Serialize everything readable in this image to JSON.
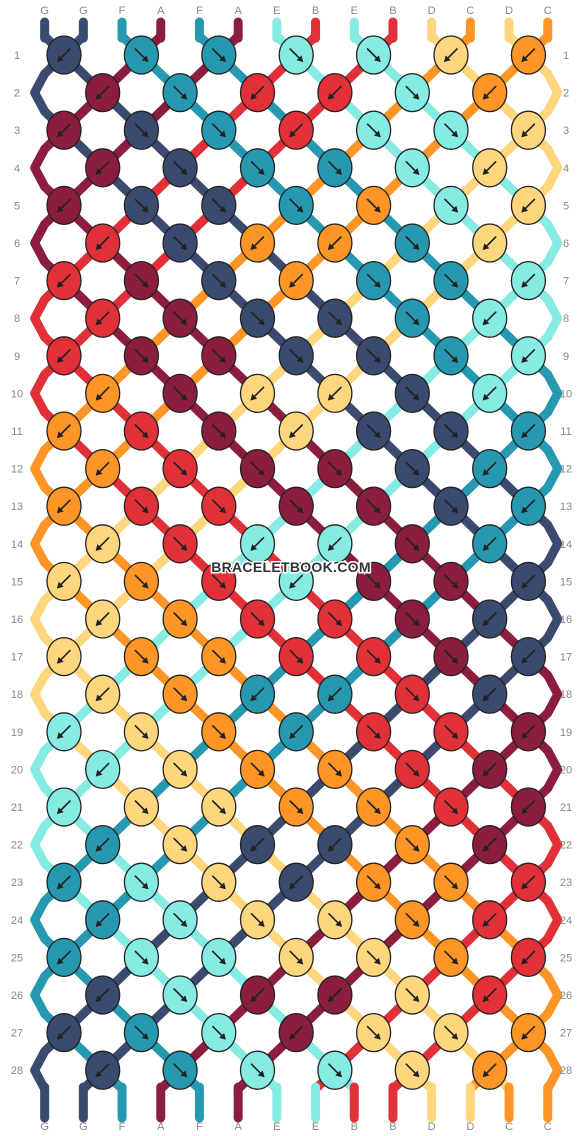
{
  "site": {
    "watermark": "BRACELETBOOK.COM"
  },
  "colors": {
    "G": "#3b4a6f",
    "F": "#2699b1",
    "A": "#8b1e3f",
    "E": "#85ebe3",
    "B": "#e13038",
    "D": "#fed67e",
    "C": "#fd9627"
  },
  "pattern": {
    "strings_top": [
      "G",
      "G",
      "F",
      "A",
      "F",
      "A",
      "E",
      "B",
      "E",
      "B",
      "D",
      "C",
      "D",
      "C"
    ],
    "strings_bottom": [
      "G",
      "G",
      "F",
      "A",
      "F",
      "A",
      "E",
      "E",
      "B",
      "B",
      "D",
      "D",
      "C",
      "C"
    ],
    "row_numbers": [
      "1",
      "2",
      "3",
      "4",
      "5",
      "6",
      "7",
      "8",
      "9",
      "10",
      "11",
      "12",
      "13",
      "14",
      "15",
      "16",
      "17",
      "18",
      "19",
      "20",
      "21",
      "22",
      "23",
      "24",
      "25",
      "26",
      "27",
      "28"
    ],
    "rows": [
      [
        {
          "c": "G",
          "d": "L"
        },
        {
          "c": "F",
          "d": "R"
        },
        {
          "c": "F",
          "d": "R"
        },
        {
          "c": "E",
          "d": "R"
        },
        {
          "c": "E",
          "d": "R"
        },
        {
          "c": "D",
          "d": "L"
        },
        {
          "c": "C",
          "d": "L"
        }
      ],
      [
        {
          "c": "A",
          "d": "L"
        },
        {
          "c": "F",
          "d": "R"
        },
        {
          "c": "B",
          "d": "L"
        },
        {
          "c": "B",
          "d": "L"
        },
        {
          "c": "E",
          "d": "R"
        },
        {
          "c": "C",
          "d": "L"
        }
      ],
      [
        {
          "c": "A",
          "d": "L"
        },
        {
          "c": "G",
          "d": "R"
        },
        {
          "c": "F",
          "d": "R"
        },
        {
          "c": "B",
          "d": "L"
        },
        {
          "c": "E",
          "d": "R"
        },
        {
          "c": "E",
          "d": "R"
        },
        {
          "c": "D",
          "d": "L"
        }
      ],
      [
        {
          "c": "A",
          "d": "L"
        },
        {
          "c": "G",
          "d": "R"
        },
        {
          "c": "F",
          "d": "R"
        },
        {
          "c": "F",
          "d": "R"
        },
        {
          "c": "E",
          "d": "R"
        },
        {
          "c": "D",
          "d": "L"
        }
      ],
      [
        {
          "c": "A",
          "d": "L"
        },
        {
          "c": "G",
          "d": "R"
        },
        {
          "c": "G",
          "d": "R"
        },
        {
          "c": "F",
          "d": "R"
        },
        {
          "c": "C",
          "d": "R"
        },
        {
          "c": "E",
          "d": "R"
        },
        {
          "c": "D",
          "d": "L"
        }
      ],
      [
        {
          "c": "B",
          "d": "L"
        },
        {
          "c": "G",
          "d": "R"
        },
        {
          "c": "C",
          "d": "L"
        },
        {
          "c": "C",
          "d": "L"
        },
        {
          "c": "F",
          "d": "R"
        },
        {
          "c": "D",
          "d": "L"
        }
      ],
      [
        {
          "c": "B",
          "d": "L"
        },
        {
          "c": "A",
          "d": "R"
        },
        {
          "c": "G",
          "d": "R"
        },
        {
          "c": "C",
          "d": "L"
        },
        {
          "c": "F",
          "d": "R"
        },
        {
          "c": "F",
          "d": "R"
        },
        {
          "c": "E",
          "d": "L"
        }
      ],
      [
        {
          "c": "B",
          "d": "L"
        },
        {
          "c": "A",
          "d": "R"
        },
        {
          "c": "G",
          "d": "R"
        },
        {
          "c": "G",
          "d": "R"
        },
        {
          "c": "F",
          "d": "R"
        },
        {
          "c": "E",
          "d": "L"
        }
      ],
      [
        {
          "c": "B",
          "d": "L"
        },
        {
          "c": "A",
          "d": "R"
        },
        {
          "c": "A",
          "d": "R"
        },
        {
          "c": "G",
          "d": "R"
        },
        {
          "c": "G",
          "d": "R"
        },
        {
          "c": "F",
          "d": "R"
        },
        {
          "c": "E",
          "d": "L"
        }
      ],
      [
        {
          "c": "C",
          "d": "L"
        },
        {
          "c": "A",
          "d": "R"
        },
        {
          "c": "D",
          "d": "L"
        },
        {
          "c": "D",
          "d": "L"
        },
        {
          "c": "G",
          "d": "R"
        },
        {
          "c": "E",
          "d": "L"
        }
      ],
      [
        {
          "c": "C",
          "d": "L"
        },
        {
          "c": "B",
          "d": "R"
        },
        {
          "c": "A",
          "d": "R"
        },
        {
          "c": "D",
          "d": "L"
        },
        {
          "c": "G",
          "d": "R"
        },
        {
          "c": "G",
          "d": "R"
        },
        {
          "c": "F",
          "d": "L"
        }
      ],
      [
        {
          "c": "C",
          "d": "L"
        },
        {
          "c": "B",
          "d": "R"
        },
        {
          "c": "A",
          "d": "R"
        },
        {
          "c": "A",
          "d": "R"
        },
        {
          "c": "G",
          "d": "R"
        },
        {
          "c": "F",
          "d": "L"
        }
      ],
      [
        {
          "c": "C",
          "d": "L"
        },
        {
          "c": "B",
          "d": "R"
        },
        {
          "c": "B",
          "d": "R"
        },
        {
          "c": "A",
          "d": "R"
        },
        {
          "c": "A",
          "d": "R"
        },
        {
          "c": "G",
          "d": "R"
        },
        {
          "c": "F",
          "d": "L"
        }
      ],
      [
        {
          "c": "D",
          "d": "L"
        },
        {
          "c": "B",
          "d": "R"
        },
        {
          "c": "E",
          "d": "L"
        },
        {
          "c": "E",
          "d": "L"
        },
        {
          "c": "A",
          "d": "R"
        },
        {
          "c": "F",
          "d": "L"
        }
      ],
      [
        {
          "c": "D",
          "d": "L"
        },
        {
          "c": "C",
          "d": "R"
        },
        {
          "c": "B",
          "d": "R"
        },
        {
          "c": "E",
          "d": "L"
        },
        {
          "c": "A",
          "d": "R"
        },
        {
          "c": "A",
          "d": "R"
        },
        {
          "c": "G",
          "d": "L"
        }
      ],
      [
        {
          "c": "D",
          "d": "L"
        },
        {
          "c": "C",
          "d": "R"
        },
        {
          "c": "B",
          "d": "R"
        },
        {
          "c": "B",
          "d": "R"
        },
        {
          "c": "A",
          "d": "R"
        },
        {
          "c": "G",
          "d": "L"
        }
      ],
      [
        {
          "c": "D",
          "d": "L"
        },
        {
          "c": "C",
          "d": "R"
        },
        {
          "c": "C",
          "d": "R"
        },
        {
          "c": "B",
          "d": "R"
        },
        {
          "c": "B",
          "d": "R"
        },
        {
          "c": "A",
          "d": "R"
        },
        {
          "c": "G",
          "d": "L"
        }
      ],
      [
        {
          "c": "D",
          "d": "L"
        },
        {
          "c": "C",
          "d": "R"
        },
        {
          "c": "F",
          "d": "L"
        },
        {
          "c": "F",
          "d": "L"
        },
        {
          "c": "B",
          "d": "R"
        },
        {
          "c": "G",
          "d": "L"
        }
      ],
      [
        {
          "c": "E",
          "d": "L"
        },
        {
          "c": "D",
          "d": "R"
        },
        {
          "c": "C",
          "d": "R"
        },
        {
          "c": "F",
          "d": "L"
        },
        {
          "c": "B",
          "d": "R"
        },
        {
          "c": "B",
          "d": "R"
        },
        {
          "c": "A",
          "d": "L"
        }
      ],
      [
        {
          "c": "E",
          "d": "L"
        },
        {
          "c": "D",
          "d": "R"
        },
        {
          "c": "C",
          "d": "R"
        },
        {
          "c": "C",
          "d": "R"
        },
        {
          "c": "B",
          "d": "R"
        },
        {
          "c": "A",
          "d": "L"
        }
      ],
      [
        {
          "c": "E",
          "d": "L"
        },
        {
          "c": "D",
          "d": "R"
        },
        {
          "c": "D",
          "d": "R"
        },
        {
          "c": "C",
          "d": "R"
        },
        {
          "c": "C",
          "d": "R"
        },
        {
          "c": "B",
          "d": "R"
        },
        {
          "c": "A",
          "d": "L"
        }
      ],
      [
        {
          "c": "F",
          "d": "L"
        },
        {
          "c": "D",
          "d": "R"
        },
        {
          "c": "G",
          "d": "L"
        },
        {
          "c": "G",
          "d": "L"
        },
        {
          "c": "C",
          "d": "R"
        },
        {
          "c": "A",
          "d": "L"
        }
      ],
      [
        {
          "c": "F",
          "d": "L"
        },
        {
          "c": "E",
          "d": "R"
        },
        {
          "c": "D",
          "d": "R"
        },
        {
          "c": "G",
          "d": "L"
        },
        {
          "c": "C",
          "d": "R"
        },
        {
          "c": "C",
          "d": "R"
        },
        {
          "c": "B",
          "d": "L"
        }
      ],
      [
        {
          "c": "F",
          "d": "L"
        },
        {
          "c": "E",
          "d": "R"
        },
        {
          "c": "D",
          "d": "R"
        },
        {
          "c": "D",
          "d": "R"
        },
        {
          "c": "C",
          "d": "R"
        },
        {
          "c": "B",
          "d": "L"
        }
      ],
      [
        {
          "c": "F",
          "d": "L"
        },
        {
          "c": "E",
          "d": "R"
        },
        {
          "c": "E",
          "d": "R"
        },
        {
          "c": "D",
          "d": "R"
        },
        {
          "c": "D",
          "d": "R"
        },
        {
          "c": "C",
          "d": "R"
        },
        {
          "c": "B",
          "d": "L"
        }
      ],
      [
        {
          "c": "G",
          "d": "L"
        },
        {
          "c": "E",
          "d": "R"
        },
        {
          "c": "A",
          "d": "L"
        },
        {
          "c": "A",
          "d": "L"
        },
        {
          "c": "D",
          "d": "R"
        },
        {
          "c": "B",
          "d": "L"
        }
      ],
      [
        {
          "c": "G",
          "d": "L"
        },
        {
          "c": "F",
          "d": "R"
        },
        {
          "c": "E",
          "d": "R"
        },
        {
          "c": "A",
          "d": "L"
        },
        {
          "c": "D",
          "d": "R"
        },
        {
          "c": "D",
          "d": "R"
        },
        {
          "c": "C",
          "d": "L"
        }
      ],
      [
        {
          "c": "G",
          "d": "L"
        },
        {
          "c": "F",
          "d": "R"
        },
        {
          "c": "E",
          "d": "R"
        },
        {
          "c": "E",
          "d": "R"
        },
        {
          "c": "D",
          "d": "R"
        },
        {
          "c": "C",
          "d": "L"
        }
      ]
    ]
  }
}
